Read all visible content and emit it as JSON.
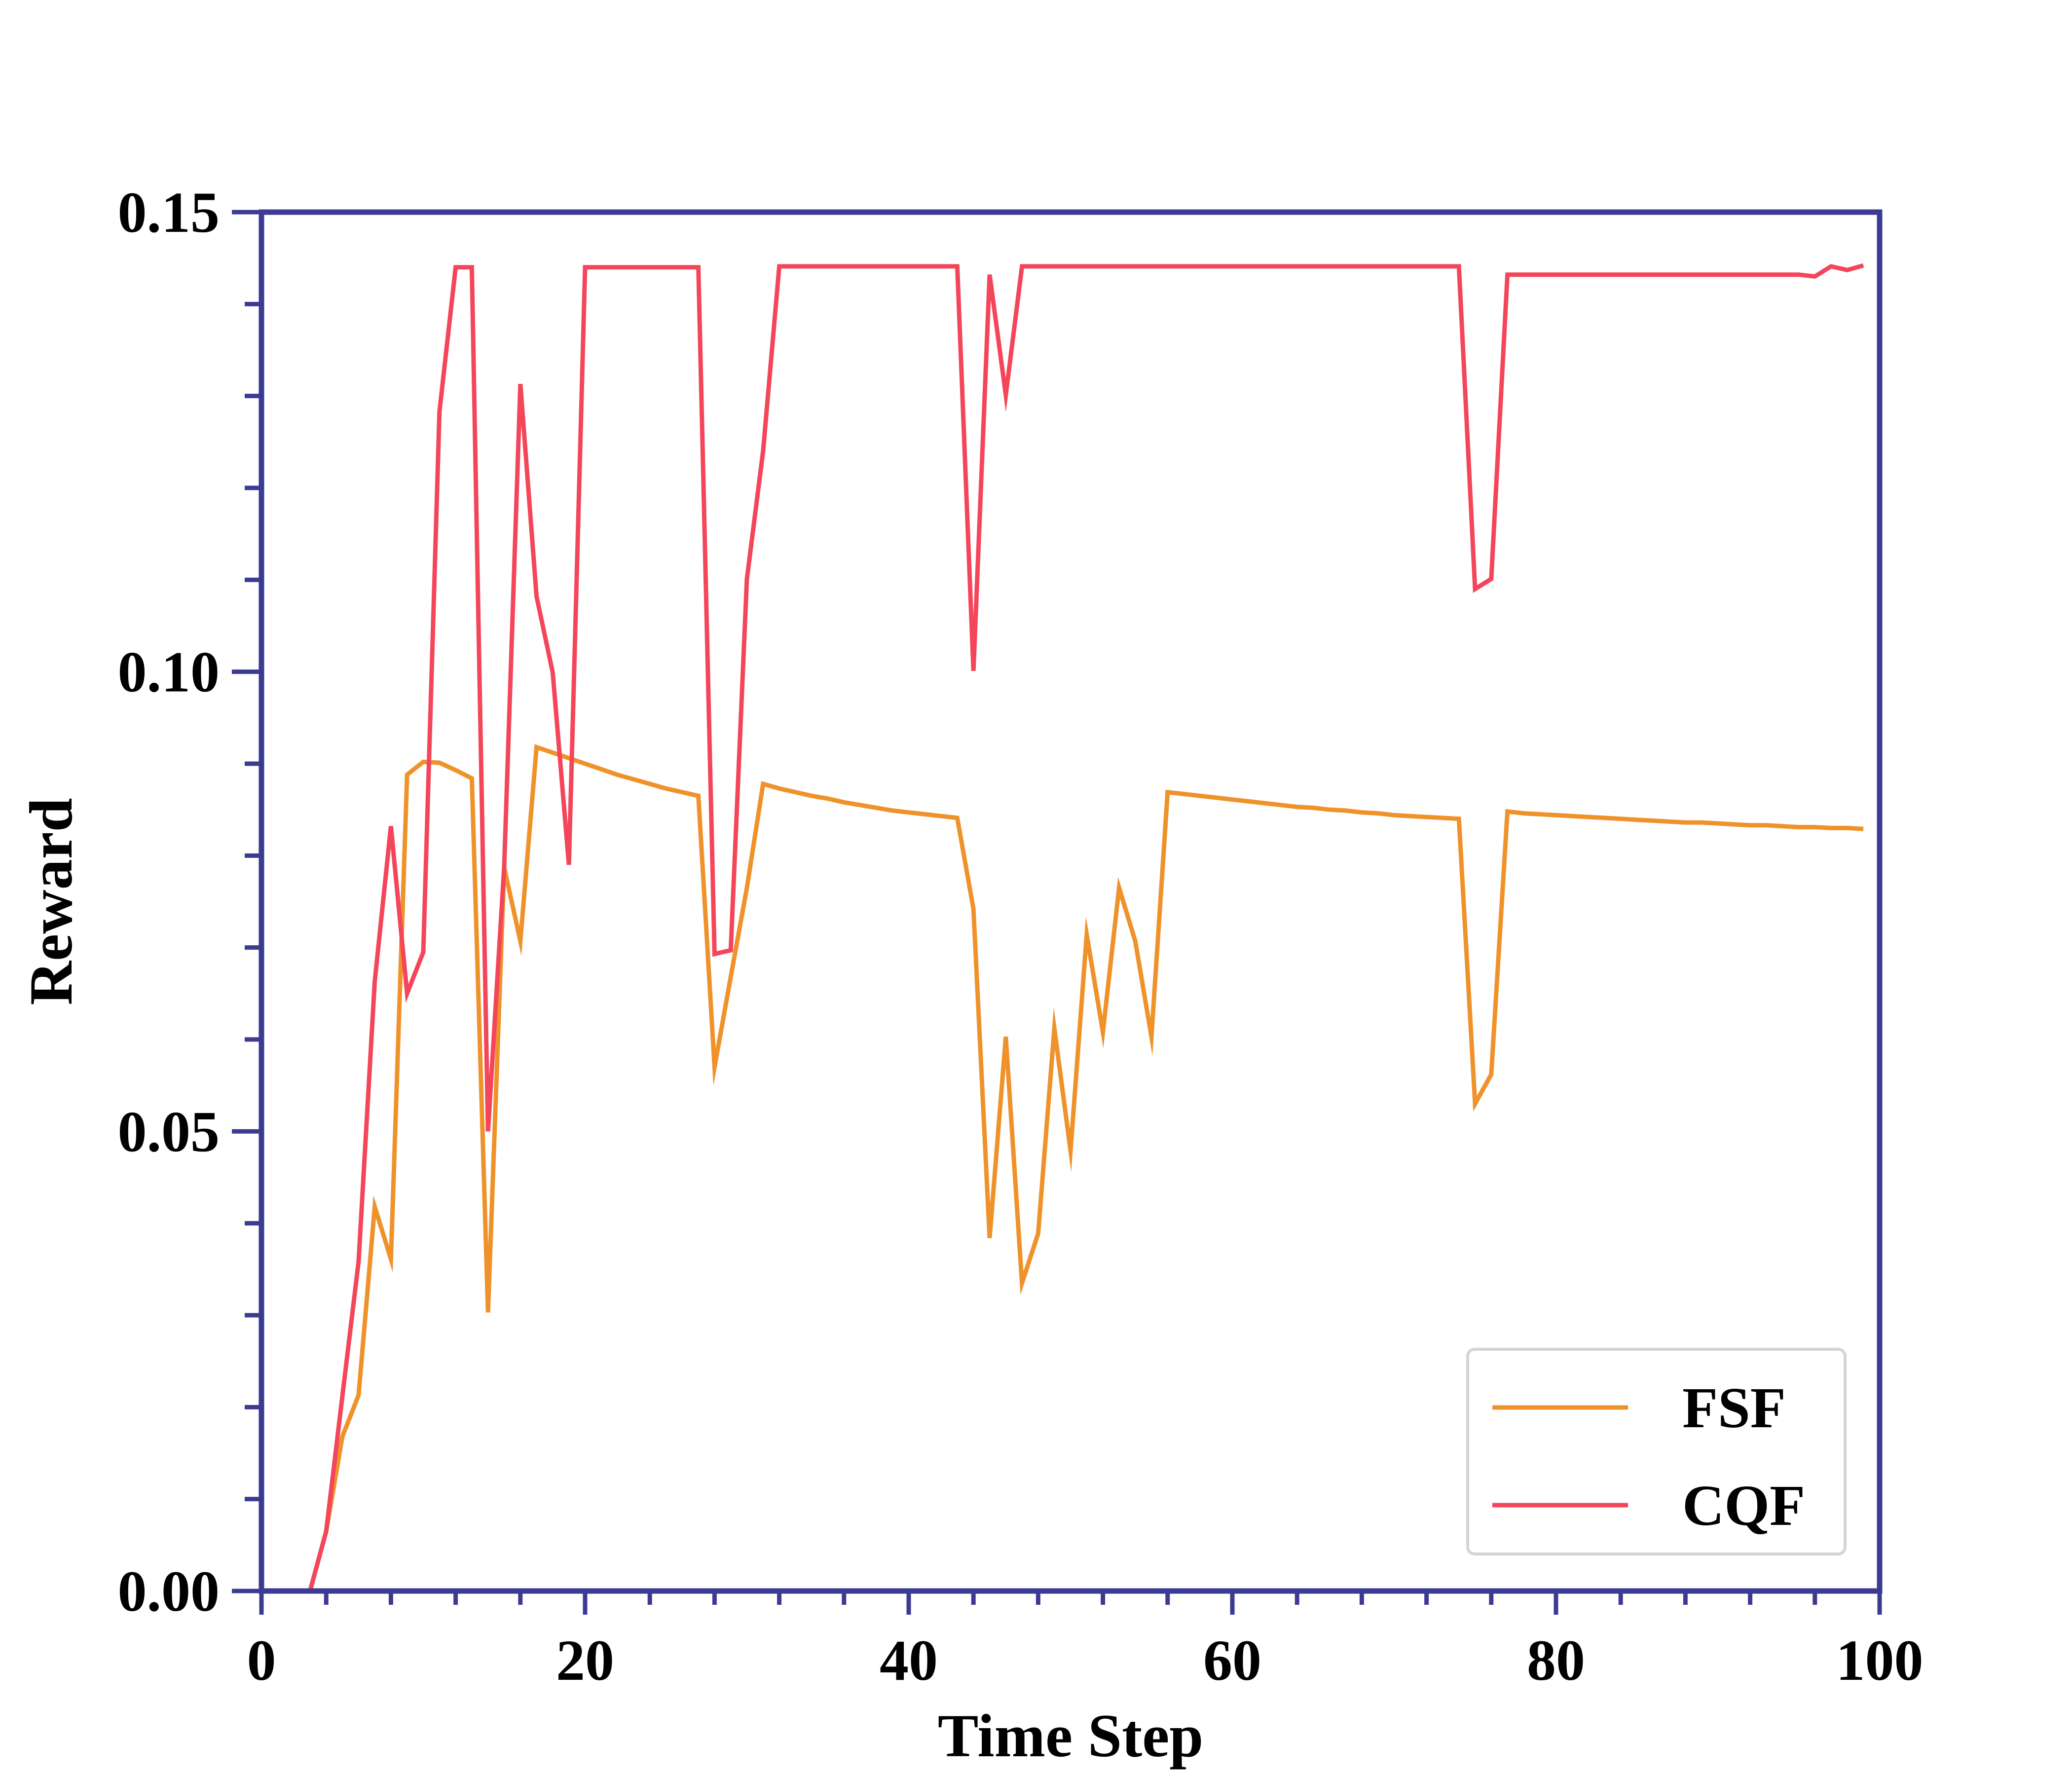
{
  "chart_data": {
    "type": "line",
    "title": "",
    "xlabel": "Time Step",
    "ylabel": "Reward",
    "xlim": [
      0,
      100
    ],
    "ylim": [
      0,
      0.15
    ],
    "xticks": [
      0,
      20,
      40,
      60,
      80,
      100
    ],
    "xtick_labels": [
      "0",
      "20",
      "40",
      "60",
      "80",
      "100"
    ],
    "yticks": [
      0,
      0.05,
      0.1,
      0.15
    ],
    "ytick_labels": [
      "0.00",
      "0.05",
      "0.10",
      "0.15"
    ],
    "grid": false,
    "legend_position": "bottom-right",
    "axis_color": "#3b3b93",
    "series": [
      {
        "name": "FSF",
        "color": "#ef922a",
        "x": [
          3,
          4,
          5,
          6,
          7,
          8,
          9,
          10,
          11,
          12,
          13,
          14,
          15,
          16,
          17,
          18,
          19,
          20,
          21,
          22,
          23,
          24,
          25,
          26,
          27,
          28,
          29,
          30,
          31,
          32,
          33,
          34,
          35,
          36,
          37,
          38,
          39,
          40,
          41,
          42,
          43,
          44,
          45,
          46,
          47,
          48,
          49,
          50,
          51,
          52,
          53,
          54,
          55,
          56,
          57,
          58,
          59,
          60,
          61,
          62,
          63,
          64,
          65,
          66,
          67,
          68,
          69,
          70,
          71,
          72,
          73,
          74,
          75,
          76,
          77,
          78,
          79,
          80,
          81,
          82,
          83,
          84,
          85,
          86,
          87,
          88,
          89,
          90,
          91,
          92,
          93,
          94,
          95,
          96,
          97,
          98,
          99
        ],
        "y": [
          0.0,
          0.0065,
          0.0168,
          0.0213,
          0.0418,
          0.0361,
          0.0888,
          0.0902,
          0.0901,
          0.0893,
          0.0884,
          0.0303,
          0.0787,
          0.0707,
          0.0918,
          0.0912,
          0.0906,
          0.09,
          0.0894,
          0.0888,
          0.0883,
          0.0878,
          0.0873,
          0.0869,
          0.0865,
          0.057,
          0.0668,
          0.0765,
          0.0878,
          0.0873,
          0.0869,
          0.0865,
          0.0862,
          0.0858,
          0.0855,
          0.0852,
          0.0849,
          0.0847,
          0.0845,
          0.0843,
          0.0841,
          0.0742,
          0.0384,
          0.0603,
          0.0335,
          0.0389,
          0.0612,
          0.0479,
          0.0714,
          0.0608,
          0.0765,
          0.0707,
          0.0603,
          0.0869,
          0.0867,
          0.0865,
          0.0863,
          0.0861,
          0.0859,
          0.0857,
          0.0855,
          0.0853,
          0.0852,
          0.085,
          0.0849,
          0.0847,
          0.0846,
          0.0844,
          0.0843,
          0.0842,
          0.0841,
          0.084,
          0.053,
          0.0562,
          0.0848,
          0.0846,
          0.0845,
          0.0844,
          0.0843,
          0.0842,
          0.0841,
          0.084,
          0.0839,
          0.0838,
          0.0837,
          0.0836,
          0.0836,
          0.0835,
          0.0834,
          0.0833,
          0.0833,
          0.0832,
          0.0831,
          0.0831,
          0.083,
          0.083,
          0.0829
        ]
      },
      {
        "name": "CQF",
        "color": "#f4465a",
        "x": [
          3,
          4,
          5,
          6,
          7,
          8,
          9,
          10,
          11,
          12,
          13,
          14,
          15,
          16,
          17,
          18,
          19,
          20,
          27,
          28,
          29,
          30,
          31,
          32,
          43,
          44,
          45,
          46,
          47,
          74,
          75,
          76,
          77,
          95,
          96,
          97,
          98,
          99
        ],
        "y": [
          0.0,
          0.0065,
          0.0212,
          0.0358,
          0.0663,
          0.0832,
          0.065,
          0.0695,
          0.1283,
          0.144,
          0.144,
          0.05,
          0.0788,
          0.1313,
          0.1082,
          0.0999,
          0.079,
          0.144,
          0.144,
          0.0693,
          0.0697,
          0.1101,
          0.124,
          0.1441,
          0.1441,
          0.1001,
          0.1432,
          0.1301,
          0.1441,
          0.1441,
          0.109,
          0.1101,
          0.1432,
          0.1432,
          0.143,
          0.1441,
          0.1437,
          0.1442
        ]
      }
    ]
  }
}
